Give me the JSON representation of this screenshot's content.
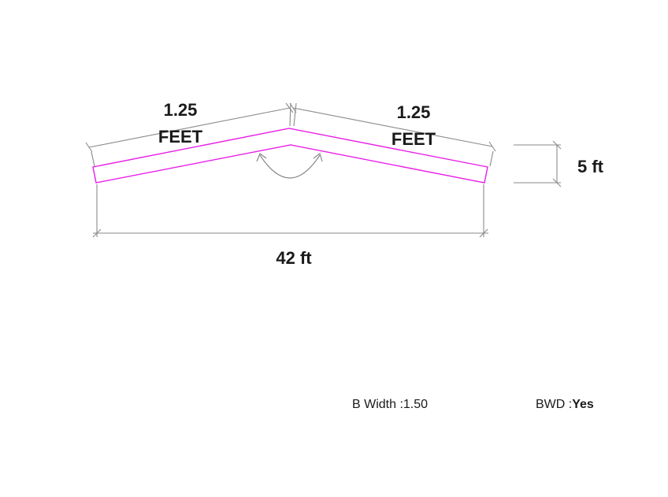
{
  "diagram": {
    "left_leg": {
      "length": "1.25",
      "unit": "FEET"
    },
    "right_leg": {
      "length": "1.25",
      "unit": "FEET"
    },
    "height_label": "5 ft",
    "span_label": "42 ft",
    "colors": {
      "profile": "#e81ee8",
      "dimension": "#8a8a8a",
      "text": "#1a1a1a"
    }
  },
  "footer": {
    "b_width_label": "B Width :",
    "b_width_value": "1.50",
    "bwd_label": "BWD :",
    "bwd_value": "Yes"
  }
}
